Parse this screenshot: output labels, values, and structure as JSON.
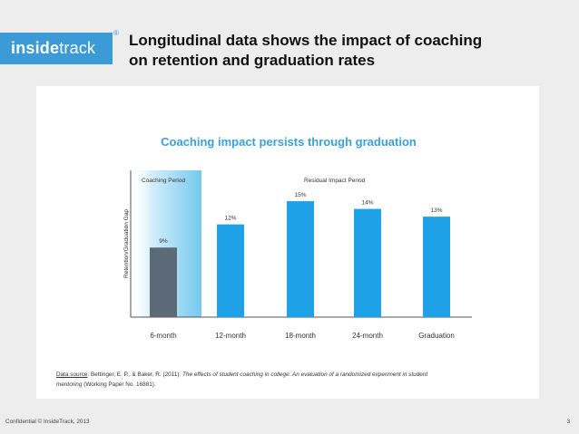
{
  "slide": {
    "logo_main": "inside",
    "logo_accent": "track",
    "logo_reg": "®",
    "title_line1": "Longitudinal data shows the impact of coaching",
    "title_line2": "on retention and graduation rates",
    "footer": "Confidential  © InsideTrack, 2013",
    "page_number": "3"
  },
  "source": {
    "label": "Data source",
    "authors": ": Bettinger, E. P., & Baker, R. (2011). ",
    "title_italic": "The effects of student coaching in college: An evaluation of a randomized experiment in student mentoring",
    "suffix": " (Working Paper No. 16881)."
  },
  "chart_data": {
    "type": "bar",
    "title": "Coaching impact persists through graduation",
    "ylabel": "Retention/Graduation Gap",
    "xlabel": "",
    "categories": [
      "6-month",
      "12-month",
      "18-month",
      "24-month",
      "Graduation"
    ],
    "values": [
      9,
      12,
      15,
      14,
      13
    ],
    "value_labels": [
      "9%",
      "12%",
      "15%",
      "14%",
      "13%"
    ],
    "ylim": [
      0,
      15
    ],
    "annotations": [
      "Coaching Period",
      "Residual Impact Period"
    ],
    "colors": {
      "coaching": "#5c6a78",
      "residual": "#1ea1e6",
      "title": "#3aa0d8",
      "band": "#7fcdf0"
    }
  }
}
